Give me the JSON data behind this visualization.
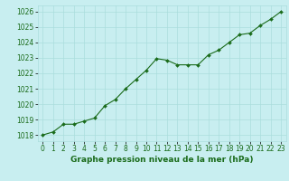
{
  "x": [
    0,
    1,
    2,
    3,
    4,
    5,
    6,
    7,
    8,
    9,
    10,
    11,
    12,
    13,
    14,
    15,
    16,
    17,
    18,
    19,
    20,
    21,
    22,
    23
  ],
  "y": [
    1018.0,
    1018.2,
    1018.7,
    1018.7,
    1018.9,
    1019.1,
    1019.9,
    1020.3,
    1021.0,
    1021.6,
    1022.2,
    1022.95,
    1022.85,
    1022.55,
    1022.55,
    1022.55,
    1023.2,
    1023.5,
    1024.0,
    1024.5,
    1024.6,
    1025.1,
    1025.5,
    1026.0
  ],
  "line_color": "#1a6b1a",
  "marker": "D",
  "marker_size": 2.0,
  "bg_color": "#c8eef0",
  "grid_color": "#aadddd",
  "ylabel_ticks": [
    1018,
    1019,
    1020,
    1021,
    1022,
    1023,
    1024,
    1025,
    1026
  ],
  "xlabel": "Graphe pression niveau de la mer (hPa)",
  "xlabel_fontsize": 6.5,
  "xlabel_color": "#1a6b1a",
  "tick_color": "#1a6b1a",
  "tick_fontsize": 5.5,
  "ylim": [
    1017.6,
    1026.4
  ],
  "xlim": [
    -0.5,
    23.5
  ]
}
